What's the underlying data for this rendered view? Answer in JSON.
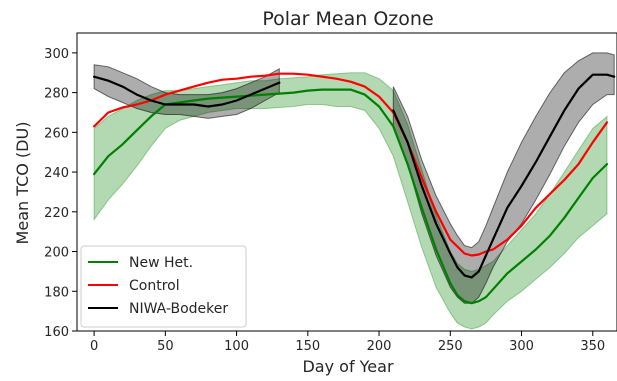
{
  "chart_data": {
    "type": "line",
    "title": "Polar Mean Ozone",
    "xlabel": "Day of Year",
    "ylabel": "Mean TCO (DU)",
    "xlim": [
      -12,
      367
    ],
    "ylim": [
      160,
      310
    ],
    "xticks": [
      0,
      50,
      100,
      150,
      200,
      250,
      300,
      350
    ],
    "yticks": [
      160,
      180,
      200,
      220,
      240,
      260,
      280,
      300
    ],
    "grid": false,
    "legend_position": "lower-left",
    "series": [
      {
        "name": "New Het.",
        "color": "#008000",
        "x": [
          0,
          10,
          20,
          30,
          40,
          50,
          60,
          70,
          80,
          90,
          100,
          110,
          120,
          130,
          140,
          150,
          160,
          170,
          180,
          190,
          200,
          210,
          220,
          230,
          240,
          250,
          255,
          260,
          265,
          270,
          275,
          280,
          290,
          300,
          310,
          320,
          330,
          340,
          350,
          360
        ],
        "values": [
          239,
          248,
          254,
          261,
          268,
          274,
          275,
          276,
          277,
          277.5,
          278,
          278.5,
          279,
          279.5,
          280,
          281,
          281.5,
          281.5,
          281.5,
          279,
          273,
          263,
          244,
          222,
          201,
          184,
          178,
          175,
          174,
          175,
          177,
          181,
          189,
          195,
          201,
          208,
          217,
          227,
          237,
          244
        ]
      },
      {
        "name": "Control",
        "color": "#ff0000",
        "x": [
          0,
          10,
          20,
          30,
          40,
          50,
          60,
          70,
          80,
          90,
          100,
          110,
          120,
          130,
          140,
          150,
          160,
          170,
          180,
          190,
          200,
          210,
          220,
          230,
          240,
          250,
          260,
          265,
          270,
          275,
          280,
          290,
          300,
          310,
          320,
          330,
          340,
          350,
          360
        ],
        "values": [
          263,
          270,
          272.5,
          274,
          276,
          279,
          281,
          283,
          285,
          286.5,
          287,
          288,
          288.5,
          289.5,
          289.5,
          289,
          288,
          287,
          285.5,
          283,
          278,
          270,
          255,
          237,
          220,
          206,
          199,
          198,
          198.5,
          200,
          201,
          206,
          213,
          222,
          229,
          236,
          244,
          255,
          265
        ]
      },
      {
        "name": "NIWA-Bodeker",
        "color": "#000000",
        "x": [
          0,
          10,
          20,
          30,
          40,
          50,
          60,
          70,
          80,
          90,
          100,
          110,
          120,
          130,
          210,
          220,
          230,
          240,
          250,
          255,
          260,
          265,
          270,
          275,
          280,
          290,
          300,
          310,
          320,
          330,
          340,
          350,
          360,
          365
        ],
        "values": [
          288,
          286,
          283,
          279,
          276,
          274,
          274,
          274,
          273,
          274,
          276,
          279,
          282,
          285,
          271,
          255,
          233,
          214,
          199,
          192,
          188,
          187,
          190,
          198,
          206,
          222,
          233,
          245,
          258,
          271,
          282,
          289,
          289,
          288
        ]
      }
    ],
    "bands": [
      {
        "series": "New Het.",
        "color": "#008000",
        "x": [
          0,
          10,
          20,
          30,
          40,
          50,
          60,
          70,
          80,
          90,
          100,
          110,
          120,
          130,
          140,
          150,
          160,
          170,
          180,
          190,
          200,
          210,
          220,
          230,
          240,
          250,
          255,
          260,
          265,
          270,
          275,
          280,
          290,
          300,
          310,
          320,
          330,
          340,
          350,
          360
        ],
        "lower": [
          216,
          226,
          234,
          243,
          253,
          262,
          266,
          268,
          270,
          271,
          272,
          272,
          272,
          272.5,
          273,
          274,
          274,
          273,
          273,
          271,
          262,
          248,
          225,
          202,
          182,
          169,
          164,
          162,
          161,
          162,
          164,
          168,
          175,
          180,
          186,
          192,
          199,
          207,
          213,
          219
        ],
        "upper": [
          262,
          268,
          272,
          276,
          279,
          281,
          281,
          282,
          283,
          284,
          285,
          286,
          286,
          287,
          287.5,
          288,
          289,
          289.5,
          290,
          290,
          287,
          281,
          264,
          241,
          218,
          200,
          194,
          191,
          190,
          191,
          193,
          195,
          203,
          211,
          219,
          229,
          240,
          251,
          262,
          268
        ]
      },
      {
        "series": "NIWA-Bodeker",
        "color": "#000000",
        "x": [
          0,
          10,
          20,
          30,
          40,
          50,
          60,
          70,
          80,
          90,
          100,
          110,
          120,
          130
        ],
        "lower": [
          282,
          278,
          275,
          272,
          270,
          269,
          269,
          268,
          267,
          268,
          269,
          272,
          276,
          280
        ],
        "upper": [
          294,
          293,
          290,
          287,
          283,
          280,
          279,
          279,
          279,
          280,
          282,
          285,
          288,
          292
        ]
      },
      {
        "series": "NIWA-Bodeker",
        "color": "#000000",
        "x": [
          210,
          220,
          230,
          240,
          250,
          255,
          260,
          265,
          270,
          275,
          280,
          290,
          300,
          310,
          320,
          330,
          340,
          350,
          360,
          365
        ],
        "lower": [
          263,
          244,
          219,
          198,
          182,
          177,
          174,
          174,
          177,
          184,
          192,
          205,
          214,
          226,
          239,
          253,
          265,
          274,
          279,
          279
        ],
        "upper": [
          283,
          268,
          246,
          228,
          214,
          208,
          203,
          202,
          205,
          213,
          222,
          240,
          255,
          268,
          280,
          290,
          296,
          300,
          300,
          299
        ]
      }
    ]
  }
}
